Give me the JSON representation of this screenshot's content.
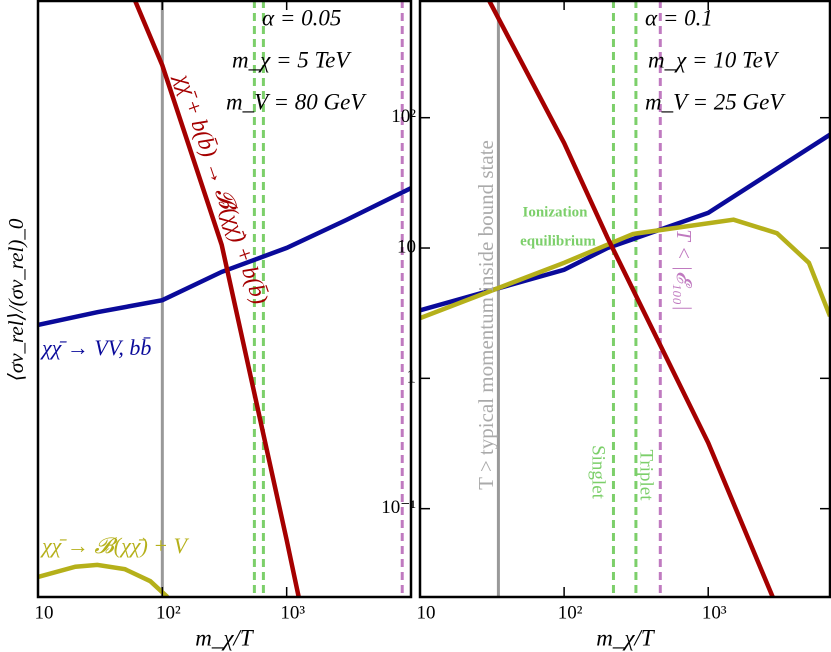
{
  "chart_data": [
    {
      "type": "line",
      "xscale": "log",
      "yscale": "log",
      "xlabel": "m_χ/T",
      "ylabel": "⟨σv_rel⟩/(σv_rel)_0",
      "xlim": [
        10,
        10000
      ],
      "ylim": [
        0.001,
        1
      ],
      "xticks": [
        10,
        {
          "value": 100,
          "label": "10²"
        },
        {
          "value": 1000,
          "label": "10³"
        }
      ],
      "series": [
        {
          "color": "#0a0a9a",
          "x": [
            10,
            30,
            100,
            300,
            1000,
            3000,
            10000
          ],
          "values": [
            0.0233,
            0.027,
            0.031,
            0.043,
            0.0568,
            0.0783,
            0.1135
          ]
        },
        {
          "color": "#a50000",
          "x": [
            60,
            100,
            300,
            1000,
            1250
          ],
          "values": [
            1.0,
            0.47,
            0.0588,
            0.00193,
            0.001
          ]
        },
        {
          "color": "#b5b01a",
          "x": [
            10,
            20,
            30,
            50,
            80,
            110
          ],
          "values": [
            0.00126,
            0.00142,
            0.00145,
            0.00138,
            0.0012,
            0.001
          ]
        }
      ],
      "vlines": [
        {
          "x": 100,
          "color": "#999999",
          "style": "solid"
        },
        {
          "x": 550,
          "color": "#7ccf6a",
          "style": "dashed"
        },
        {
          "x": 650,
          "color": "#7ccf6a",
          "style": "dashed"
        },
        {
          "x": 8500,
          "color": "#c07ac0",
          "style": "dashed"
        }
      ],
      "annotations": [
        "α = 0.05",
        "m_χ = 5 TeV",
        "m_V = 80 GeV",
        "χχ̄ + b(b̄) → 𝓑(χχ̄) + b(b̄)",
        "χχ̄ → VV, bb̄",
        "χχ̄ → 𝓑(χχ̄) + V"
      ]
    },
    {
      "type": "line",
      "xscale": "log",
      "yscale": "log",
      "xlabel": "m_χ/T",
      "xlim": [
        10,
        7000
      ],
      "ylim": [
        0.021,
        800
      ],
      "xticks": [
        10,
        {
          "value": 100,
          "label": "10²"
        },
        {
          "value": 1000,
          "label": "10³"
        }
      ],
      "yticks": [
        {
          "value": 0.1,
          "label": "10⁻¹"
        },
        1,
        10,
        {
          "value": 100,
          "label": "10²"
        }
      ],
      "series": [
        {
          "color": "#0a0a9a",
          "x": [
            10,
            100,
            200,
            1000,
            7000
          ],
          "values": [
            3.33,
            6.8,
            10,
            18.6,
            74
          ]
        },
        {
          "color": "#b5b01a",
          "x": [
            10,
            100,
            300,
            1500,
            3000,
            5000,
            7000
          ],
          "values": [
            2.9,
            7.7,
            12.8,
            16.5,
            13,
            7.7,
            3
          ]
        },
        {
          "color": "#a50000",
          "x": [
            30,
            100,
            200,
            1000,
            2800
          ],
          "values": [
            800,
            64,
            12,
            0.32,
            0.021
          ]
        }
      ],
      "vlines": [
        {
          "x": 35,
          "color": "#999999",
          "style": "solid"
        },
        {
          "x": 220,
          "color": "#7ccf6a",
          "style": "dashed"
        },
        {
          "x": 315,
          "color": "#7ccf6a",
          "style": "dashed"
        },
        {
          "x": 465,
          "color": "#c07ac0",
          "style": "dashed"
        }
      ],
      "annotations": [
        "α = 0.1",
        "m_χ = 10 TeV",
        "m_V = 25 GeV",
        "T > typical momentum inside bound state",
        "Ionization",
        "equilibrium",
        "Singlet",
        "Triplet",
        "T < |𝓔₁₀₀|"
      ]
    }
  ]
}
